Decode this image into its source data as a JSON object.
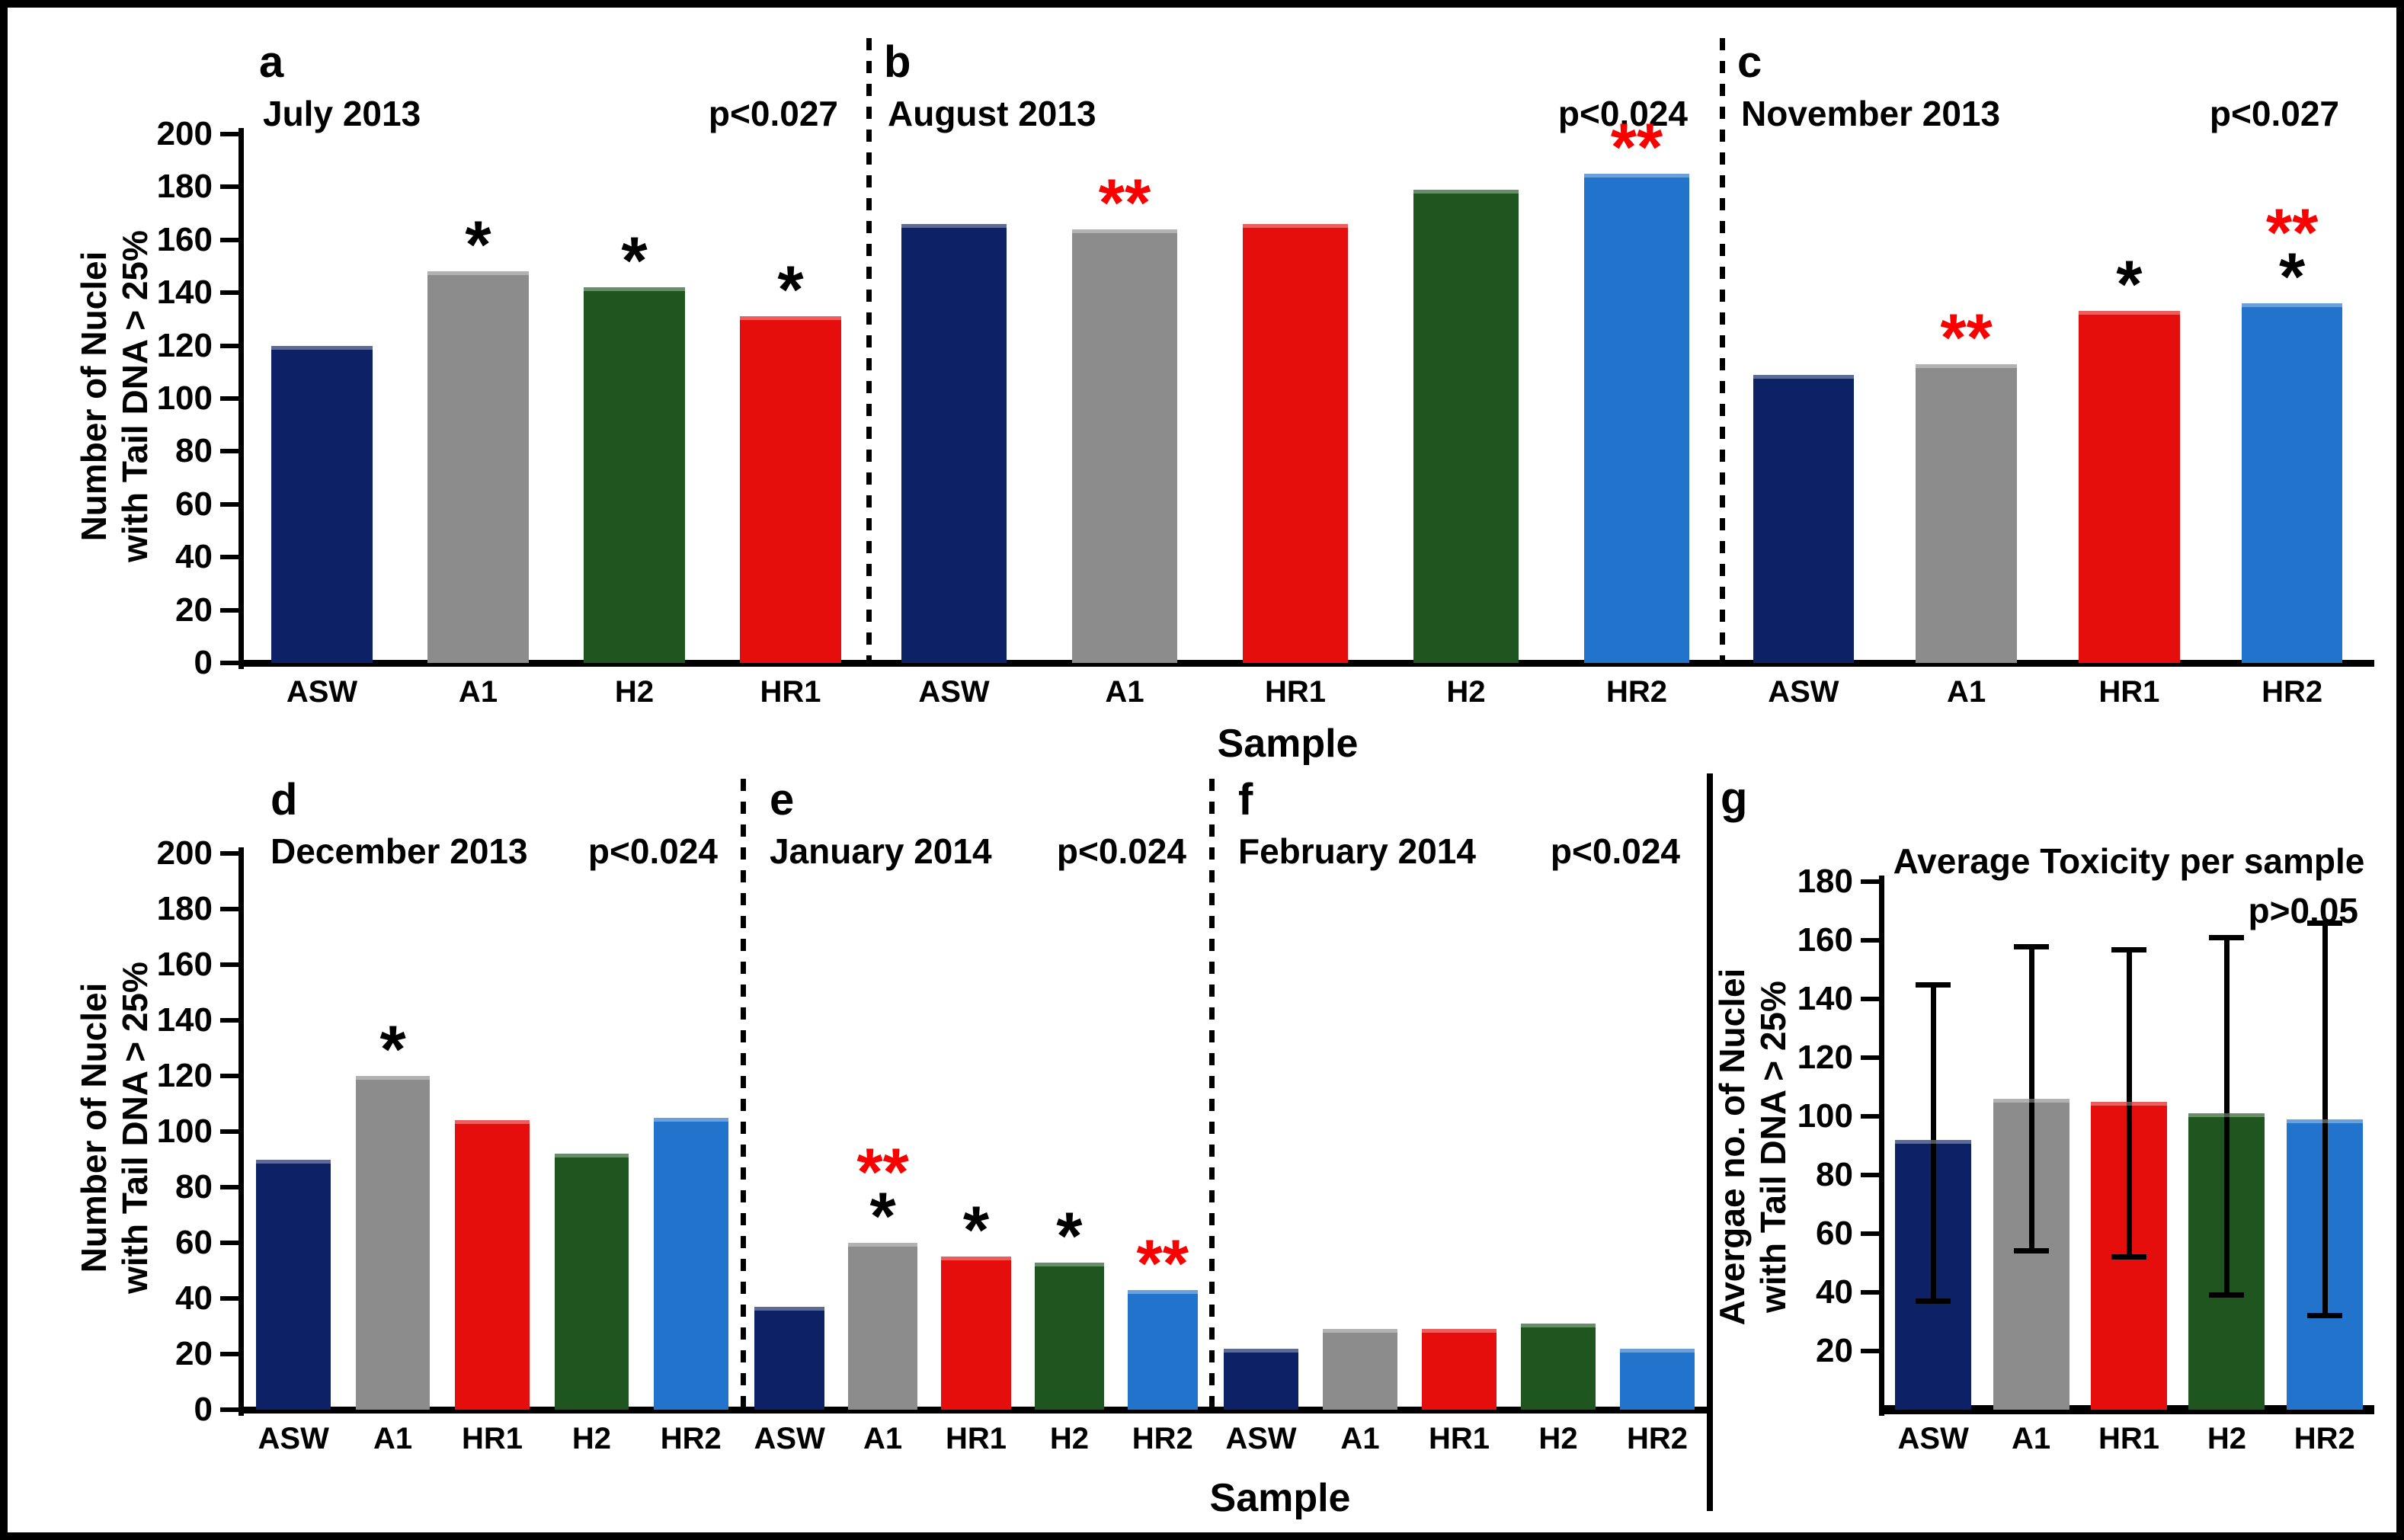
{
  "figure": {
    "row1_ylabel_line1": "Number of Nuclei",
    "row1_ylabel_line2": "with Tail DNA > 25%",
    "row2_ylabel_line1": "Number of Nuclei",
    "row2_ylabel_line2": "with Tail DNA > 25%",
    "x_axis_label_top": "Sample",
    "x_axis_label_bottom": "Sample"
  },
  "colors": {
    "ASW": "#0d2166",
    "A1": "#8c8c8c",
    "HR1": "#e60d0d",
    "H2": "#1f5620",
    "HR2": "#2173cb",
    "sig_red": "#fa0000",
    "sig_black": "#000000",
    "axis": "#000000"
  },
  "chart_data": [
    {
      "id": "a",
      "type": "bar",
      "panel_label": "a",
      "title": "July 2013",
      "p_label": "p<0.027",
      "categories": [
        "ASW",
        "A1",
        "H2",
        "HR1"
      ],
      "values": [
        120,
        148,
        142,
        131
      ],
      "sig_red": [
        "",
        "",
        "",
        ""
      ],
      "sig_black": [
        "",
        "*",
        "*",
        "*"
      ],
      "ylim": [
        0,
        200
      ],
      "yticks": [
        0,
        20,
        40,
        60,
        80,
        100,
        120,
        140,
        160,
        180,
        200
      ],
      "ylabel": "Number of Nuclei with Tail DNA > 25%",
      "xlabel": "Sample"
    },
    {
      "id": "b",
      "type": "bar",
      "panel_label": "b",
      "title": "August 2013",
      "p_label": "p<0.024",
      "categories": [
        "ASW",
        "A1",
        "HR1",
        "H2",
        "HR2"
      ],
      "values": [
        166,
        164,
        166,
        179,
        185
      ],
      "sig_red": [
        "",
        "**",
        "",
        "",
        "**"
      ],
      "sig_black": [
        "",
        "",
        "",
        "",
        ""
      ],
      "ylim": [
        0,
        200
      ],
      "yticks": [],
      "ylabel": "Number of Nuclei with Tail DNA > 25%",
      "xlabel": "Sample"
    },
    {
      "id": "c",
      "type": "bar",
      "panel_label": "c",
      "title": "November 2013",
      "p_label": "p<0.027",
      "categories": [
        "ASW",
        "A1",
        "HR1",
        "HR2"
      ],
      "values": [
        109,
        113,
        133,
        136
      ],
      "sig_red": [
        "",
        "**",
        "",
        "**"
      ],
      "sig_black": [
        "",
        "",
        "*",
        "*"
      ],
      "ylim": [
        0,
        200
      ],
      "yticks": [],
      "ylabel": "Number of Nuclei with Tail DNA > 25%",
      "xlabel": "Sample"
    },
    {
      "id": "d",
      "type": "bar",
      "panel_label": "d",
      "title": "December 2013",
      "p_label": "p<0.024",
      "categories": [
        "ASW",
        "A1",
        "HR1",
        "H2",
        "HR2"
      ],
      "values": [
        90,
        120,
        104,
        92,
        105
      ],
      "sig_red": [
        "",
        "",
        "",
        "",
        ""
      ],
      "sig_black": [
        "",
        "*",
        "",
        "",
        ""
      ],
      "ylim": [
        0,
        200
      ],
      "yticks": [
        0,
        20,
        40,
        60,
        80,
        100,
        120,
        140,
        160,
        180,
        200
      ],
      "ylabel": "Number of Nuclei with Tail DNA > 25%",
      "xlabel": "Sample"
    },
    {
      "id": "e",
      "type": "bar",
      "panel_label": "e",
      "title": "January 2014",
      "p_label": "p<0.024",
      "categories": [
        "ASW",
        "A1",
        "HR1",
        "H2",
        "HR2"
      ],
      "values": [
        37,
        60,
        55,
        53,
        43
      ],
      "sig_red": [
        "",
        "**",
        "",
        "",
        "**"
      ],
      "sig_black": [
        "",
        "*",
        "*",
        "*",
        ""
      ],
      "ylim": [
        0,
        200
      ],
      "yticks": [],
      "ylabel": "Number of Nuclei with Tail DNA > 25%",
      "xlabel": "Sample"
    },
    {
      "id": "f",
      "type": "bar",
      "panel_label": "f",
      "title": "February 2014",
      "p_label": "p<0.024",
      "categories": [
        "ASW",
        "A1",
        "HR1",
        "H2",
        "HR2"
      ],
      "values": [
        22,
        29,
        29,
        31,
        22
      ],
      "sig_red": [
        "",
        "",
        "",
        "",
        ""
      ],
      "sig_black": [
        "",
        "",
        "",
        "",
        ""
      ],
      "ylim": [
        0,
        200
      ],
      "yticks": [],
      "ylabel": "Number of Nuclei with Tail DNA > 25%",
      "xlabel": "Sample"
    },
    {
      "id": "g",
      "type": "bar",
      "panel_label": "g",
      "title": "Average Toxicity per sample",
      "p_label": "p>0.05",
      "categories": [
        "ASW",
        "A1",
        "HR1",
        "H2",
        "HR2"
      ],
      "values": [
        92,
        106,
        105,
        101,
        99
      ],
      "error_low": [
        37,
        54,
        52,
        39,
        32
      ],
      "error_high": [
        145,
        158,
        157,
        161,
        166
      ],
      "sig_red": [
        "",
        "",
        "",
        "",
        ""
      ],
      "sig_black": [
        "",
        "",
        "",
        "",
        ""
      ],
      "ylim": [
        0,
        180
      ],
      "yticks": [
        20,
        40,
        60,
        80,
        100,
        120,
        140,
        160,
        180
      ],
      "ylabel": "Avergae no. of Nuclei with Tail DNA > 25%",
      "ylabel_line1": "Avergae no. of Nuclei",
      "ylabel_line2": "with Tail DNA > 25%"
    }
  ]
}
